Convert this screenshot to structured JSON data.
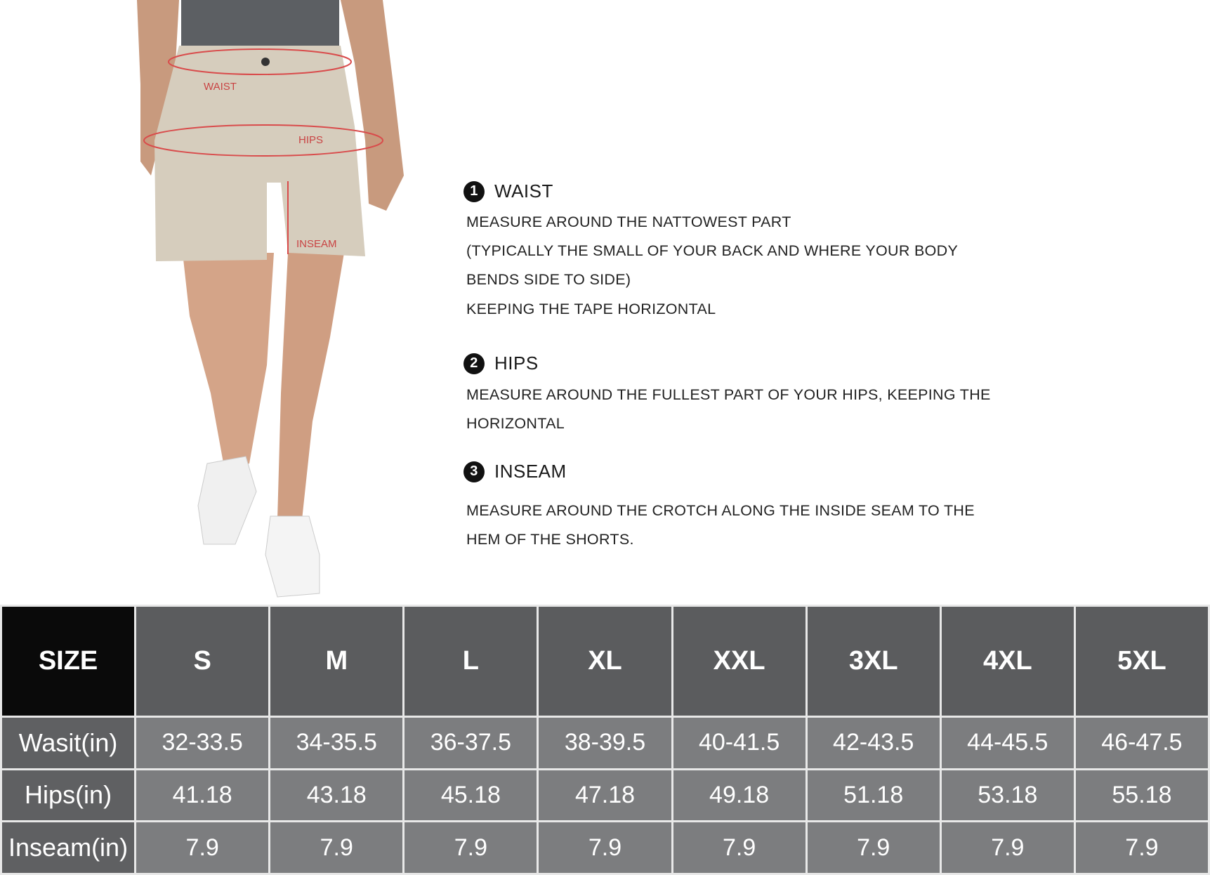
{
  "figure_labels": {
    "waist": "WAIST",
    "hips": "HIPS",
    "inseam": "INSEAM"
  },
  "colors": {
    "measure_line": "#d94b4b",
    "shorts": "#d6cdbd",
    "header_bg": "#5b5c5e",
    "corner_bg": "#0a0a0a",
    "cell_bg": "#7c7d7f"
  },
  "sections": [
    {
      "number": "1",
      "title": "WAIST",
      "lines": [
        "MEASURE AROUND THE NATTOWEST PART",
        "(TYPICALLY THE SMALL OF YOUR BACK AND WHERE YOUR BODY",
        "BENDS SIDE TO SIDE)",
        "KEEPING THE TAPE HORIZONTAL"
      ]
    },
    {
      "number": "2",
      "title": "HIPS",
      "lines": [
        "MEASURE AROUND THE FULLEST PART OF YOUR HIPS, KEEPING THE",
        "HORIZONTAL"
      ]
    },
    {
      "number": "3",
      "title": "INSEAM",
      "lines": [
        "MEASURE AROUND THE CROTCH ALONG THE INSIDE SEAM TO THE",
        "HEM OF THE SHORTS."
      ]
    }
  ],
  "table": {
    "corner": "SIZE",
    "sizes": [
      "S",
      "M",
      "L",
      "XL",
      "XXL",
      "3XL",
      "4XL",
      "5XL"
    ],
    "rows": [
      {
        "label": "Wasit(in)",
        "values": [
          "32-33.5",
          "34-35.5",
          "36-37.5",
          "38-39.5",
          "40-41.5",
          "42-43.5",
          "44-45.5",
          "46-47.5"
        ]
      },
      {
        "label": "Hips(in)",
        "values": [
          "41.18",
          "43.18",
          "45.18",
          "47.18",
          "49.18",
          "51.18",
          "53.18",
          "55.18"
        ]
      },
      {
        "label": "Inseam(in)",
        "values": [
          "7.9",
          "7.9",
          "7.9",
          "7.9",
          "7.9",
          "7.9",
          "7.9",
          "7.9"
        ]
      }
    ]
  }
}
